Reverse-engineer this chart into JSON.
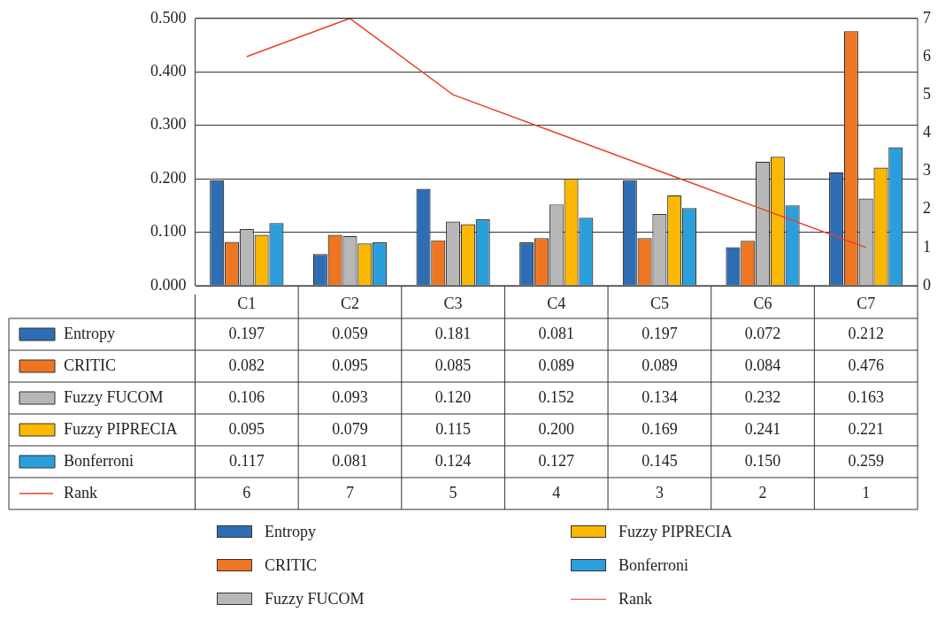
{
  "chart_data": {
    "type": "bar",
    "categories": [
      "C1",
      "C2",
      "C3",
      "C4",
      "C5",
      "C6",
      "C7"
    ],
    "series": [
      {
        "name": "Entropy",
        "color": "#2e6db4",
        "values": [
          0.197,
          0.059,
          0.181,
          0.081,
          0.197,
          0.072,
          0.212
        ],
        "value_labels": [
          "0.197",
          "0.059",
          "0.181",
          "0.081",
          "0.197",
          "0.072",
          "0.212"
        ]
      },
      {
        "name": "CRITIC",
        "color": "#ee7623",
        "values": [
          0.082,
          0.095,
          0.085,
          0.089,
          0.089,
          0.084,
          0.476
        ],
        "value_labels": [
          "0.082",
          "0.095",
          "0.085",
          "0.089",
          "0.089",
          "0.084",
          "0.476"
        ]
      },
      {
        "name": "Fuzzy FUCOM",
        "color": "#b7b7b7",
        "values": [
          0.106,
          0.093,
          0.12,
          0.152,
          0.134,
          0.232,
          0.163
        ],
        "value_labels": [
          "0.106",
          "0.093",
          "0.120",
          "0.152",
          "0.134",
          "0.232",
          "0.163"
        ]
      },
      {
        "name": "Fuzzy PIPRECIA",
        "color": "#fbb800",
        "values": [
          0.095,
          0.079,
          0.115,
          0.2,
          0.169,
          0.241,
          0.221
        ],
        "value_labels": [
          "0.095",
          "0.079",
          "0.115",
          "0.200",
          "0.169",
          "0.241",
          "0.221"
        ]
      },
      {
        "name": "Bonferroni",
        "color": "#2a9fdc",
        "values": [
          0.117,
          0.081,
          0.124,
          0.127,
          0.145,
          0.15,
          0.259
        ],
        "value_labels": [
          "0.117",
          "0.081",
          "0.124",
          "0.127",
          "0.145",
          "0.150",
          "0.259"
        ]
      },
      {
        "name": "Rank",
        "type": "line",
        "axis": "y2",
        "color": "#e8402a",
        "values": [
          6,
          7,
          5,
          4,
          3,
          2,
          1
        ],
        "value_labels": [
          "6",
          "7",
          "5",
          "4",
          "3",
          "2",
          "1"
        ]
      }
    ],
    "ylim": [
      0,
      0.5
    ],
    "yticks": [
      {
        "value": 0,
        "label": "0.000"
      },
      {
        "value": 0.1,
        "label": "0.100"
      },
      {
        "value": 0.2,
        "label": "0.200"
      },
      {
        "value": 0.3,
        "label": "0.300"
      },
      {
        "value": 0.4,
        "label": "0.400"
      },
      {
        "value": 0.5,
        "label": "0.500"
      }
    ],
    "y2lim": [
      0,
      7
    ],
    "y2ticks": [
      0,
      1,
      2,
      3,
      4,
      5,
      6,
      7
    ],
    "grid": "y",
    "legend": "bottom",
    "marker": "none",
    "line_style": "solid",
    "data_labels": true
  }
}
